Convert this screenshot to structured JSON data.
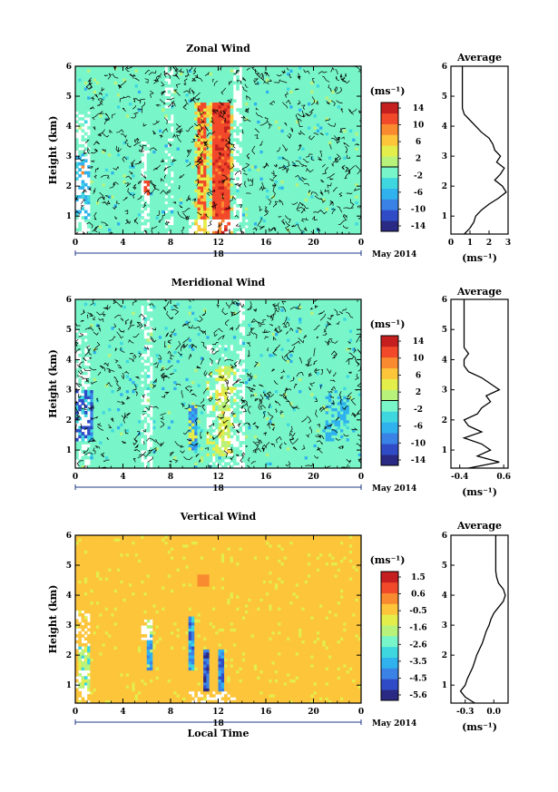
{
  "chart_data": [
    {
      "type": "heatmap",
      "title": "Zonal Wind",
      "ylabel": "Height (km)",
      "xlim": [
        0,
        24
      ],
      "ylim": [
        0.4,
        6
      ],
      "x_ticks": [
        "0",
        "4",
        "8",
        "12",
        "16",
        "20",
        "0"
      ],
      "y_ticks": [
        "1",
        "2",
        "3",
        "4",
        "5",
        "6"
      ],
      "date_label": "18",
      "month_label": "May 2014",
      "colorbar": {
        "unit": "(ms⁻¹)",
        "ticks": [
          "14",
          "10",
          "6",
          "2",
          "-2",
          "-6",
          "-10",
          "-14"
        ],
        "range": [
          -16,
          16
        ]
      },
      "pattern": "zonal",
      "profile": {
        "title": "Average",
        "xlabel": "(ms⁻¹)",
        "xlim": [
          0,
          3
        ],
        "x_ticks": [
          "0",
          "1",
          "2",
          "3"
        ],
        "heights": [
          0.4,
          0.6,
          0.8,
          1.0,
          1.2,
          1.4,
          1.6,
          1.8,
          2.0,
          2.2,
          2.4,
          2.6,
          2.8,
          3.0,
          3.2,
          3.4,
          3.6,
          3.8,
          4.0,
          4.2,
          4.4,
          4.6,
          4.8,
          5.0,
          5.2,
          5.4,
          5.6,
          5.8,
          6.0
        ],
        "values": [
          0.7,
          1.0,
          1.2,
          1.3,
          1.6,
          2.0,
          2.5,
          2.9,
          2.7,
          2.3,
          2.6,
          2.8,
          2.4,
          2.6,
          2.3,
          2.2,
          2.0,
          1.6,
          1.3,
          1.0,
          0.7,
          0.6,
          0.6,
          0.6,
          0.6,
          0.6,
          0.6,
          0.6,
          0.6
        ]
      }
    },
    {
      "type": "heatmap",
      "title": "Meridional Wind",
      "ylabel": "Height (km)",
      "xlim": [
        0,
        24
      ],
      "ylim": [
        0.4,
        6
      ],
      "x_ticks": [
        "0",
        "4",
        "8",
        "12",
        "16",
        "20",
        "0"
      ],
      "y_ticks": [
        "1",
        "2",
        "3",
        "4",
        "5",
        "6"
      ],
      "date_label": "18",
      "month_label": "May 2014",
      "colorbar": {
        "unit": "(ms⁻¹)",
        "ticks": [
          "14",
          "10",
          "6",
          "2",
          "-2",
          "-6",
          "-10",
          "-14"
        ],
        "range": [
          -16,
          16
        ]
      },
      "pattern": "meridional",
      "profile": {
        "title": "Average",
        "xlabel": "(ms⁻¹)",
        "xlim": [
          -0.6,
          0.7
        ],
        "x_ticks": [
          "-0.4",
          "0.6"
        ],
        "x_tick_values": [
          -0.4,
          0.6
        ],
        "heights": [
          0.4,
          0.6,
          0.8,
          1.0,
          1.2,
          1.4,
          1.6,
          1.8,
          2.0,
          2.2,
          2.4,
          2.6,
          2.8,
          3.0,
          3.2,
          3.4,
          3.6,
          3.8,
          4.0,
          4.2,
          4.4,
          4.6,
          4.8,
          5.0,
          5.2,
          5.4,
          5.6,
          5.8,
          6.0
        ],
        "values": [
          -0.2,
          0.5,
          0.0,
          0.3,
          0.1,
          -0.3,
          0.1,
          -0.2,
          -0.3,
          0.0,
          0.1,
          0.3,
          0.2,
          0.5,
          0.3,
          0.1,
          -0.2,
          -0.3,
          -0.3,
          -0.2,
          -0.3,
          -0.3,
          -0.3,
          -0.3,
          -0.3,
          -0.3,
          -0.3,
          -0.3,
          -0.3
        ]
      }
    },
    {
      "type": "heatmap",
      "title": "Vertical Wind",
      "ylabel": "Height (km)",
      "xlabel": "Local Time",
      "xlim": [
        0,
        24
      ],
      "ylim": [
        0.4,
        6
      ],
      "x_ticks": [
        "0",
        "4",
        "8",
        "12",
        "16",
        "20",
        "0"
      ],
      "y_ticks": [
        "1",
        "2",
        "3",
        "4",
        "5",
        "6"
      ],
      "date_label": "18",
      "month_label": "May 2014",
      "colorbar": {
        "unit": "(ms⁻¹)",
        "ticks": [
          "1.5",
          "0.6",
          "-0.5",
          "-1.6",
          "-2.6",
          "-3.5",
          "-4.5",
          "-5.6"
        ],
        "range": [
          -6,
          2
        ]
      },
      "pattern": "vertical",
      "profile": {
        "title": "Average",
        "xlabel": "(ms⁻¹)",
        "xlim": [
          -0.45,
          0.15
        ],
        "x_ticks": [
          "-0.3",
          "0.0"
        ],
        "x_tick_values": [
          -0.3,
          0.0
        ],
        "heights": [
          0.4,
          0.6,
          0.8,
          1.0,
          1.2,
          1.4,
          1.6,
          1.8,
          2.0,
          2.2,
          2.4,
          2.6,
          2.8,
          3.0,
          3.2,
          3.4,
          3.6,
          3.8,
          4.0,
          4.2,
          4.4,
          4.6,
          4.8,
          5.0,
          5.2,
          5.4,
          5.6,
          5.8,
          6.0
        ],
        "values": [
          -0.2,
          -0.3,
          -0.35,
          -0.3,
          -0.28,
          -0.25,
          -0.22,
          -0.2,
          -0.18,
          -0.15,
          -0.12,
          -0.1,
          -0.08,
          -0.05,
          -0.03,
          0.0,
          0.05,
          0.1,
          0.12,
          0.1,
          0.05,
          0.03,
          0.02,
          0.02,
          0.02,
          0.02,
          0.02,
          0.02,
          0.02
        ]
      }
    }
  ]
}
